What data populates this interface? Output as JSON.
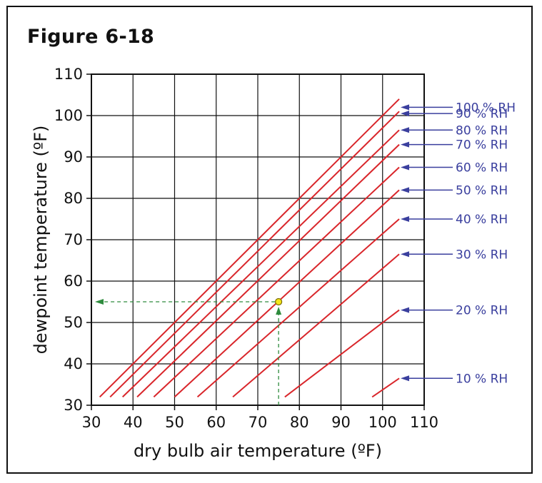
{
  "figure_title": "Figure 6-18",
  "chart_data": {
    "type": "line",
    "title": "",
    "xlabel": "dry bulb air temperature (ºF)",
    "ylabel": "dewpoint temperature (ºF)",
    "xlim": [
      30,
      110
    ],
    "ylim": [
      30,
      110
    ],
    "xticks": [
      30,
      40,
      50,
      60,
      70,
      80,
      90,
      100,
      110
    ],
    "yticks": [
      30,
      40,
      50,
      60,
      70,
      80,
      90,
      100,
      110
    ],
    "xtick_labels": [
      "30",
      "40",
      "50",
      "60",
      "70",
      "80",
      "90",
      "100",
      "110"
    ],
    "ytick_labels": [
      "30",
      "40",
      "50",
      "60",
      "70",
      "80",
      "90",
      "100",
      "110"
    ],
    "grid": true,
    "line_color": "#d9262b",
    "label_color": "#3a3f9e",
    "marker_color": "#f5e61a",
    "guide_color": "#2e8b3d",
    "series": [
      {
        "name": "100 % RH",
        "x": [
          32,
          104
        ],
        "y": [
          32,
          104
        ]
      },
      {
        "name": "90 % RH",
        "x": [
          34.5,
          104
        ],
        "y": [
          32,
          101
        ]
      },
      {
        "name": "80 % RH",
        "x": [
          37.5,
          104
        ],
        "y": [
          32,
          96.5
        ]
      },
      {
        "name": "70 % RH",
        "x": [
          41,
          104
        ],
        "y": [
          32,
          93
        ]
      },
      {
        "name": "60 % RH",
        "x": [
          45,
          104
        ],
        "y": [
          32,
          87.5
        ]
      },
      {
        "name": "50 % RH",
        "x": [
          50,
          104
        ],
        "y": [
          32,
          82
        ]
      },
      {
        "name": "40 % RH",
        "x": [
          55.5,
          104
        ],
        "y": [
          32,
          75
        ]
      },
      {
        "name": "30 % RH",
        "x": [
          64,
          104
        ],
        "y": [
          32,
          66.5
        ]
      },
      {
        "name": "20 % RH",
        "x": [
          76.5,
          104
        ],
        "y": [
          32,
          53
        ]
      },
      {
        "name": "10 % RH",
        "x": [
          97.5,
          104
        ],
        "y": [
          32,
          36.5
        ]
      }
    ],
    "label_y": [
      102,
      100.5,
      96.5,
      93,
      87.5,
      82,
      75,
      66.5,
      53,
      36.5
    ],
    "marker": {
      "x": 75,
      "y": 55
    },
    "guide_x_to": 30,
    "guide_y_to": 30
  }
}
